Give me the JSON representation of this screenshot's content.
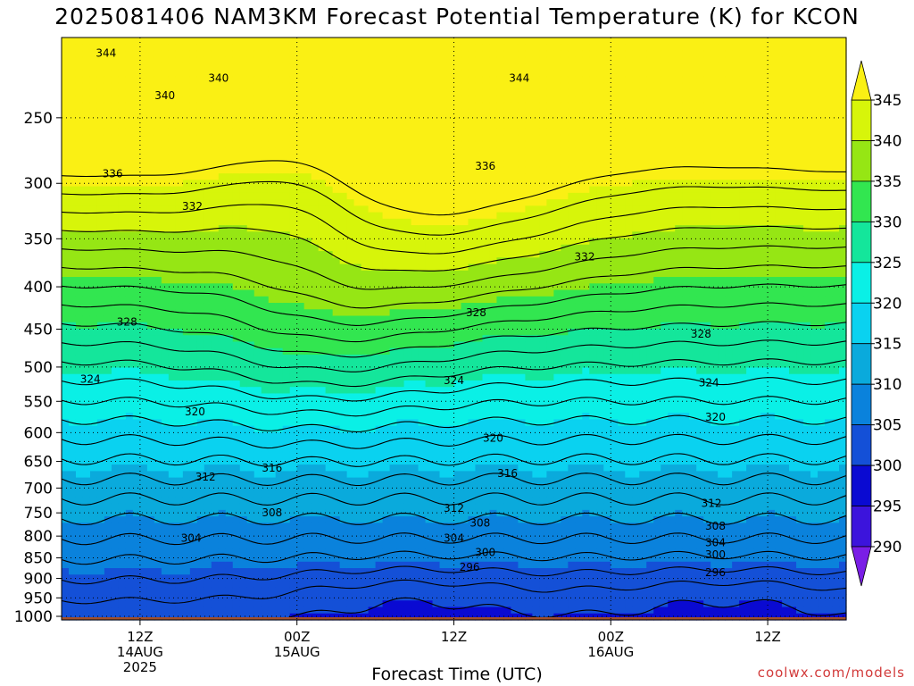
{
  "title": "2025081406 NAM3KM Forecast Potential Temperature (K) for KCON",
  "credit": "coolwx.com/models",
  "chart_data": {
    "type": "heatmap",
    "title": "2025081406 NAM3KM Forecast Potential Temperature (K) for KCON",
    "xlabel": "Forecast Time (UTC)",
    "ylabel": "",
    "x_ticks": [
      {
        "lines": [
          "12Z",
          "14AUG",
          "2025"
        ],
        "hour": 6
      },
      {
        "lines": [
          "00Z",
          "15AUG"
        ],
        "hour": 18
      },
      {
        "lines": [
          "12Z"
        ],
        "hour": 30
      },
      {
        "lines": [
          "00Z",
          "16AUG"
        ],
        "hour": 42
      },
      {
        "lines": [
          "12Z"
        ],
        "hour": 54
      }
    ],
    "xlim": [
      0,
      60
    ],
    "y_ticks": [
      250,
      300,
      350,
      400,
      450,
      500,
      550,
      600,
      650,
      700,
      750,
      800,
      850,
      900,
      950,
      1000
    ],
    "ylim": [
      1010,
      200
    ],
    "y_scale": "log",
    "grid": true,
    "colorbar": {
      "labels": [
        "345",
        "340",
        "335",
        "330",
        "325",
        "320",
        "315",
        "310",
        "305",
        "300",
        "295",
        "290"
      ],
      "levels": [
        290,
        295,
        300,
        305,
        310,
        315,
        320,
        325,
        330,
        335,
        340,
        345
      ],
      "colors": [
        "#7a1ee6",
        "#3c14dc",
        "#0a0ad2",
        "#1450d7",
        "#0a82dc",
        "#0aaadc",
        "#0ad2f0",
        "#0af0e6",
        "#14e69b",
        "#32e650",
        "#96e614",
        "#d7f50a",
        "#faf014"
      ]
    },
    "surface_color": "#a0502d",
    "contour_labels": [
      {
        "text": "344",
        "x": 3.4,
        "p": 209
      },
      {
        "text": "340",
        "x": 12.0,
        "p": 224
      },
      {
        "text": "344",
        "x": 35.0,
        "p": 224
      },
      {
        "text": "340",
        "x": 7.9,
        "p": 235
      },
      {
        "text": "336",
        "x": 3.9,
        "p": 292
      },
      {
        "text": "336",
        "x": 32.4,
        "p": 286
      },
      {
        "text": "332",
        "x": 10.0,
        "p": 320
      },
      {
        "text": "332",
        "x": 40.0,
        "p": 368
      },
      {
        "text": "328",
        "x": 5.0,
        "p": 441
      },
      {
        "text": "328",
        "x": 31.7,
        "p": 430
      },
      {
        "text": "328",
        "x": 48.9,
        "p": 456
      },
      {
        "text": "324",
        "x": 2.2,
        "p": 517
      },
      {
        "text": "324",
        "x": 30.0,
        "p": 519
      },
      {
        "text": "324",
        "x": 49.5,
        "p": 522
      },
      {
        "text": "320",
        "x": 10.2,
        "p": 566
      },
      {
        "text": "320",
        "x": 33.0,
        "p": 609
      },
      {
        "text": "320",
        "x": 50.0,
        "p": 575
      },
      {
        "text": "316",
        "x": 16.1,
        "p": 662
      },
      {
        "text": "316",
        "x": 34.1,
        "p": 672
      },
      {
        "text": "312",
        "x": 11.0,
        "p": 679
      },
      {
        "text": "312",
        "x": 30.0,
        "p": 740
      },
      {
        "text": "312",
        "x": 49.7,
        "p": 730
      },
      {
        "text": "308",
        "x": 16.1,
        "p": 750
      },
      {
        "text": "308",
        "x": 32.0,
        "p": 771
      },
      {
        "text": "308",
        "x": 50.0,
        "p": 778
      },
      {
        "text": "304",
        "x": 9.9,
        "p": 805
      },
      {
        "text": "304",
        "x": 30.0,
        "p": 805
      },
      {
        "text": "304",
        "x": 50.0,
        "p": 815
      },
      {
        "text": "300",
        "x": 32.4,
        "p": 837
      },
      {
        "text": "300",
        "x": 50.0,
        "p": 842
      },
      {
        "text": "296",
        "x": 31.2,
        "p": 872
      },
      {
        "text": "296",
        "x": 50.0,
        "p": 885
      }
    ]
  }
}
